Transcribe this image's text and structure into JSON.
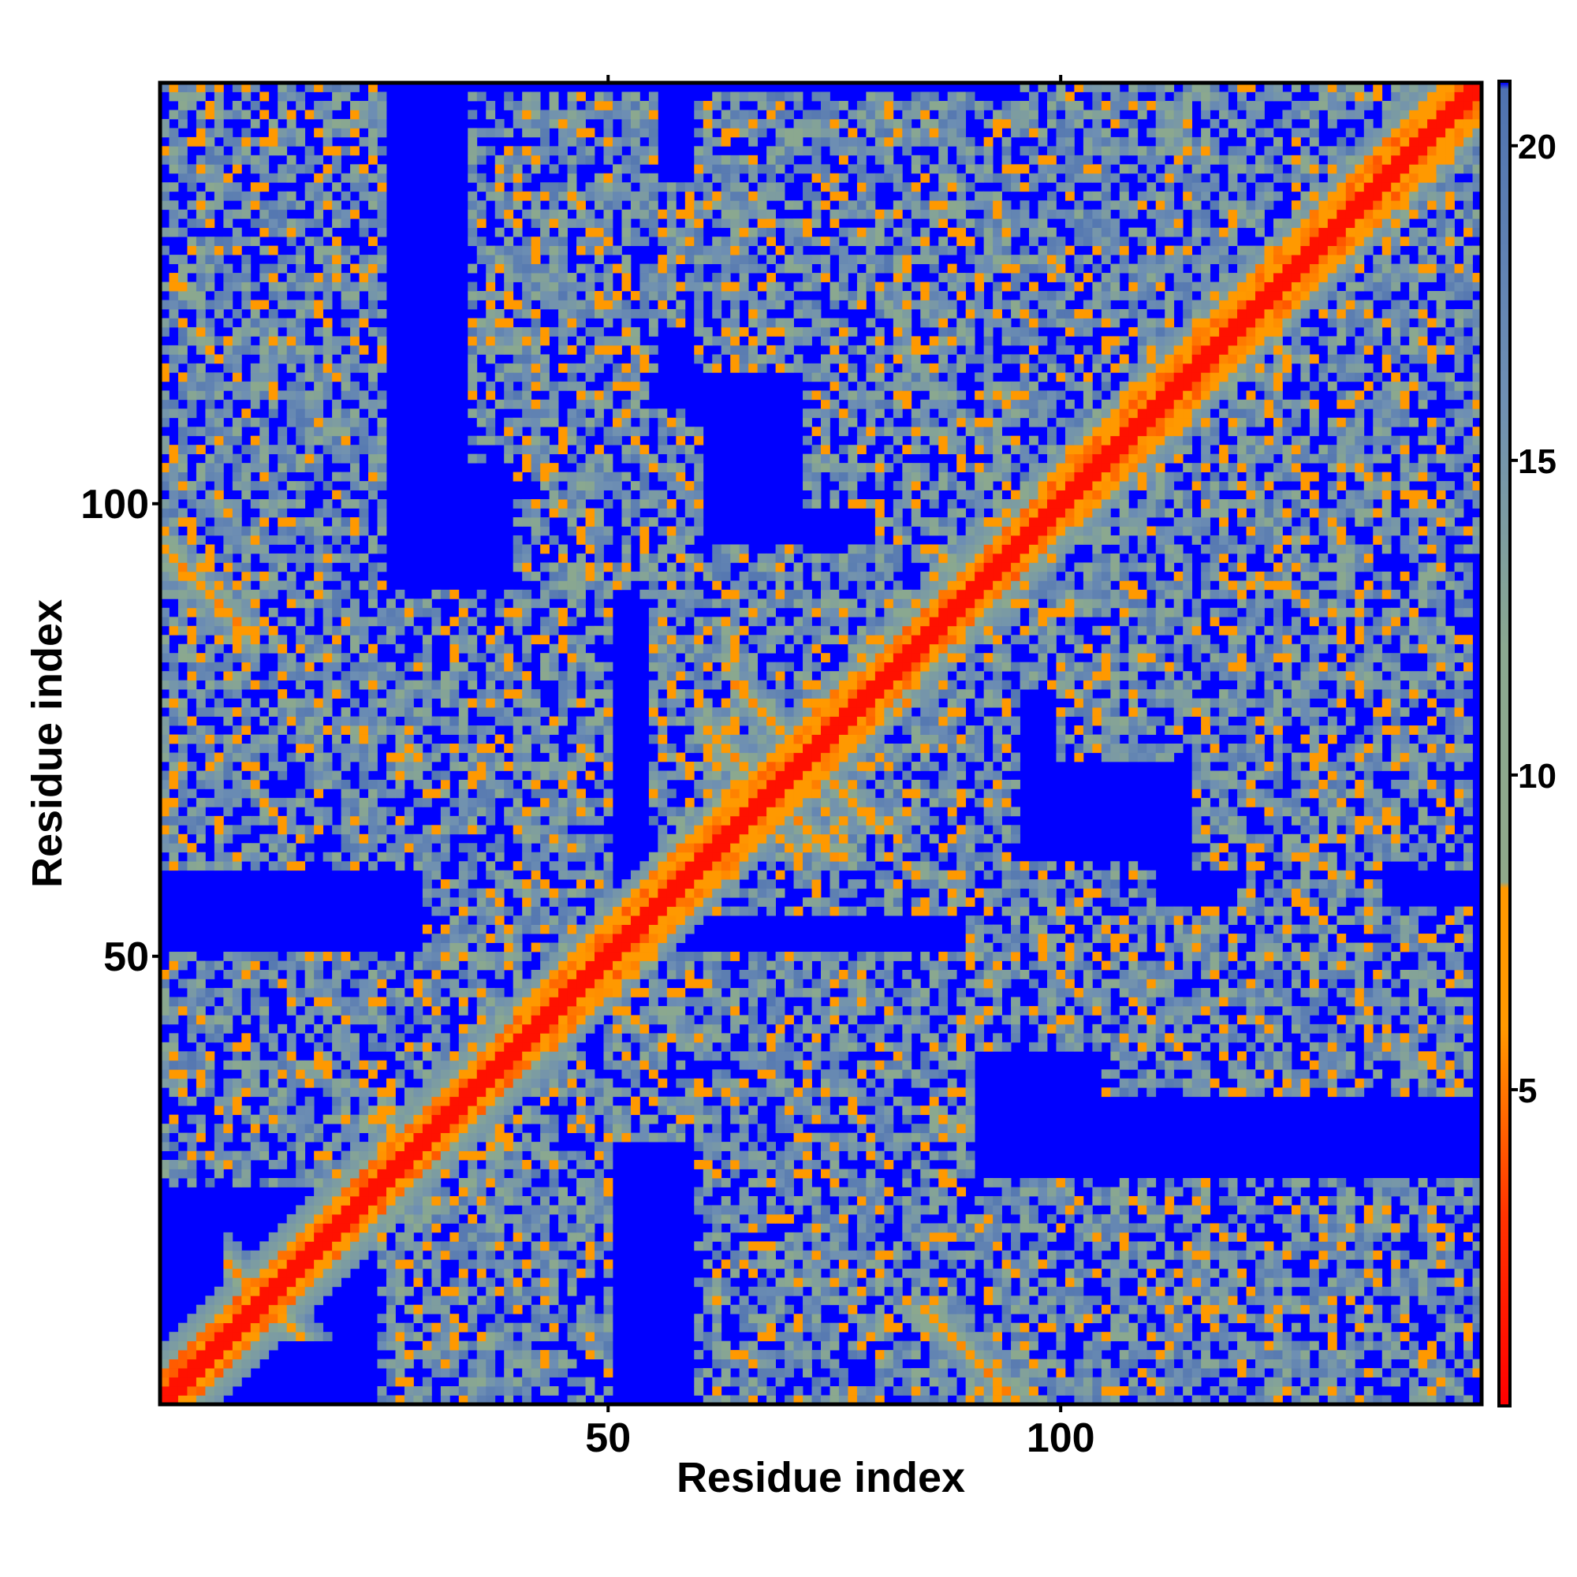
{
  "chart_data": {
    "type": "heatmap",
    "title": "",
    "xlabel": "Residue index",
    "ylabel": "Residue index",
    "n_residues": 146,
    "xlim": [
      1,
      146
    ],
    "ylim": [
      1,
      146
    ],
    "x_ticks": [
      50,
      100
    ],
    "y_ticks": [
      50,
      100
    ],
    "colorbar": {
      "ticks": [
        5,
        10,
        15,
        20
      ],
      "range": [
        0,
        21
      ],
      "colors": [
        {
          "stop": 0,
          "color": "#ff0000"
        },
        {
          "stop": 3,
          "color": "#ff3300"
        },
        {
          "stop": 6,
          "color": "#ff9900"
        },
        {
          "stop": 8.2,
          "color": "#ff9900"
        },
        {
          "stop": 8.3,
          "color": "#8fa88a"
        },
        {
          "stop": 12,
          "color": "#8aa890"
        },
        {
          "stop": 16,
          "color": "#6e8fb3"
        },
        {
          "stop": 20.9,
          "color": "#4f72b0"
        },
        {
          "stop": 21,
          "color": "#0000ff"
        }
      ]
    },
    "contact_bands": [
      {
        "kind": "anti",
        "s": 24,
        "from": 8,
        "to": 16
      },
      {
        "kind": "anti",
        "s": 96,
        "from": 1,
        "to": 11
      },
      {
        "kind": "anti",
        "s": 144,
        "from": 64,
        "to": 80
      },
      {
        "kind": "anti",
        "s": 136,
        "from": 61,
        "to": 75
      },
      {
        "kind": "anti",
        "s": 161,
        "from": 78,
        "to": 89
      },
      {
        "kind": "par",
        "d": 3,
        "from": 40,
        "to": 76
      },
      {
        "kind": "par",
        "d": 4,
        "from": 40,
        "to": 76
      },
      {
        "kind": "par",
        "d": 3,
        "from": 100,
        "to": 146
      },
      {
        "kind": "par",
        "d": 4,
        "from": 98,
        "to": 146
      }
    ],
    "contact_regions": [
      {
        "i": [
          1,
          25
        ],
        "j": [
          110,
          146
        ]
      },
      {
        "i": [
          1,
          22
        ],
        "j": [
          90,
          110
        ]
      },
      {
        "i": [
          1,
          25
        ],
        "j": [
          60,
          88
        ]
      },
      {
        "i": [
          1,
          40
        ],
        "j": [
          30,
          50
        ]
      },
      {
        "i": [
          25,
          50
        ],
        "j": [
          1,
          30
        ]
      },
      {
        "i": [
          30,
          50
        ],
        "j": [
          50,
          90
        ]
      },
      {
        "i": [
          40,
          60
        ],
        "j": [
          120,
          135
        ]
      },
      {
        "i": [
          55,
          95
        ],
        "j": [
          55,
          95
        ]
      },
      {
        "i": [
          60,
          90
        ],
        "j": [
          1,
          45
        ]
      },
      {
        "i": [
          72,
          85
        ],
        "j": [
          100,
          145
        ]
      },
      {
        "i": [
          85,
          145
        ],
        "j": [
          1,
          25
        ]
      },
      {
        "i": [
          95,
          145
        ],
        "j": [
          80,
          146
        ]
      },
      {
        "i": [
          90,
          110
        ],
        "j": [
          40,
          60
        ]
      },
      {
        "i": [
          105,
          145
        ],
        "j": [
          35,
          55
        ]
      },
      {
        "i": [
          115,
          145
        ],
        "j": [
          60,
          85
        ]
      }
    ],
    "grid": false,
    "legend": "colorbar-right"
  }
}
